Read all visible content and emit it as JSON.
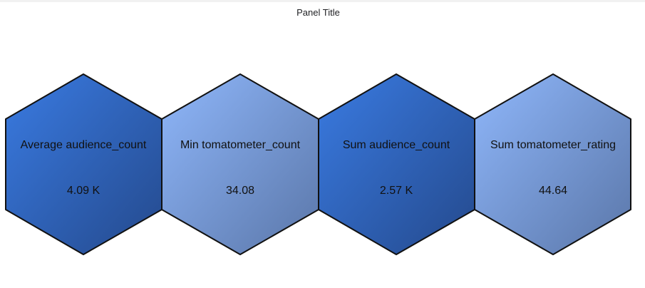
{
  "panel": {
    "title": "Panel Title"
  },
  "colors": {
    "dark_blue_light": "#3a7be2",
    "dark_blue_dark": "#24498c",
    "light_blue_light": "#8fb7fb",
    "light_blue_dark": "#5a76a8",
    "border": "#111111"
  },
  "hexagons": [
    {
      "label": "Average audience_count",
      "value": "4.09 K",
      "theme": "dark"
    },
    {
      "label": "Min tomatometer_count",
      "value": "34.08",
      "theme": "light"
    },
    {
      "label": "Sum audience_count",
      "value": "2.57 K",
      "theme": "dark"
    },
    {
      "label": "Sum tomatometer_rating",
      "value": "44.64",
      "theme": "light"
    }
  ]
}
